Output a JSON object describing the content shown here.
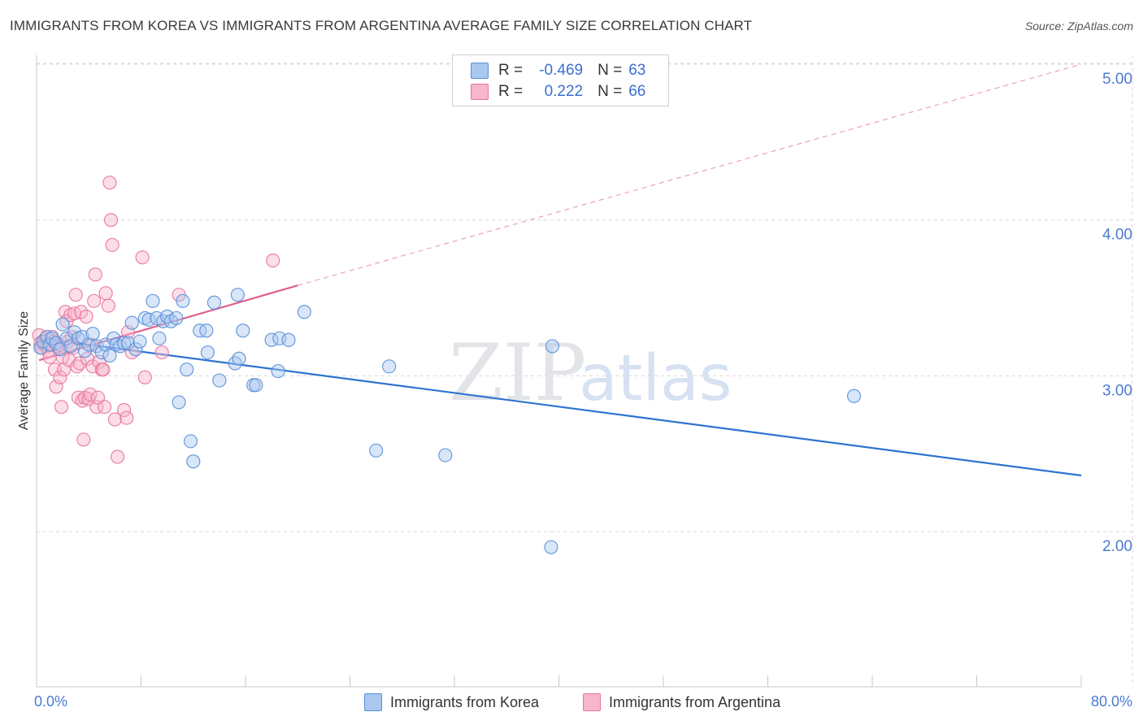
{
  "title": "IMMIGRANTS FROM KOREA VS IMMIGRANTS FROM ARGENTINA AVERAGE FAMILY SIZE CORRELATION CHART",
  "source": "Source: ZipAtlas.com",
  "watermark": {
    "zip": "ZIP",
    "atlas": "atlas"
  },
  "legend": {
    "korea": {
      "r_label": "R =",
      "r_value": "-0.469",
      "n_label": "N =",
      "n_value": "63"
    },
    "argentina": {
      "r_label": "R =",
      "r_value": "0.222",
      "n_label": "N =",
      "n_value": "66"
    }
  },
  "bottom_legend": {
    "korea": "Immigrants from Korea",
    "argentina": "Immigrants from Argentina"
  },
  "colors": {
    "korea_fill": "#a9c8f0",
    "korea_stroke": "#5b8fd8",
    "korea_line": "#2f74d0",
    "argentina_fill": "#f7b6cb",
    "argentina_stroke": "#e8769c",
    "argentina_line": "#e0608c",
    "tick": "#4a7bd0",
    "grid": "#d8d8d8"
  },
  "chart_data": {
    "type": "scatter",
    "xlabel": "",
    "ylabel": "Average Family Size",
    "xlim": [
      0,
      80
    ],
    "ylim": [
      1.0,
      5.1
    ],
    "x_tick_labels": [
      "0.0%",
      "80.0%"
    ],
    "y_ticks": [
      2.0,
      3.0,
      4.0,
      5.0
    ],
    "y_tick_labels": [
      "2.00",
      "3.00",
      "4.00",
      "5.00"
    ],
    "grid": true,
    "series": [
      {
        "name": "Immigrants from Korea",
        "points": [
          [
            0.3,
            3.18
          ],
          [
            0.5,
            3.22
          ],
          [
            0.8,
            3.25
          ],
          [
            1.0,
            3.2
          ],
          [
            1.2,
            3.24
          ],
          [
            1.5,
            3.21
          ],
          [
            1.8,
            3.17
          ],
          [
            2.0,
            3.33
          ],
          [
            2.3,
            3.24
          ],
          [
            2.6,
            3.19
          ],
          [
            2.9,
            3.28
          ],
          [
            3.2,
            3.24
          ],
          [
            3.5,
            3.25
          ],
          [
            3.7,
            3.16
          ],
          [
            4.0,
            3.2
          ],
          [
            4.3,
            3.27
          ],
          [
            4.6,
            3.19
          ],
          [
            5.0,
            3.15
          ],
          [
            5.3,
            3.2
          ],
          [
            5.6,
            3.13
          ],
          [
            5.9,
            3.24
          ],
          [
            6.1,
            3.2
          ],
          [
            6.4,
            3.19
          ],
          [
            6.7,
            3.21
          ],
          [
            7.0,
            3.21
          ],
          [
            7.3,
            3.34
          ],
          [
            7.6,
            3.17
          ],
          [
            7.9,
            3.22
          ],
          [
            8.3,
            3.37
          ],
          [
            8.6,
            3.36
          ],
          [
            8.9,
            3.48
          ],
          [
            9.2,
            3.37
          ],
          [
            9.4,
            3.24
          ],
          [
            9.7,
            3.35
          ],
          [
            10.0,
            3.38
          ],
          [
            10.3,
            3.35
          ],
          [
            10.7,
            3.37
          ],
          [
            10.9,
            2.83
          ],
          [
            11.2,
            3.48
          ],
          [
            11.5,
            3.04
          ],
          [
            11.8,
            2.58
          ],
          [
            12.0,
            2.45
          ],
          [
            12.5,
            3.29
          ],
          [
            13.0,
            3.29
          ],
          [
            13.1,
            3.15
          ],
          [
            13.6,
            3.47
          ],
          [
            14.0,
            2.97
          ],
          [
            15.2,
            3.08
          ],
          [
            15.4,
            3.52
          ],
          [
            15.5,
            3.11
          ],
          [
            15.8,
            3.29
          ],
          [
            16.6,
            2.94
          ],
          [
            16.8,
            2.94
          ],
          [
            18.0,
            3.23
          ],
          [
            18.5,
            3.03
          ],
          [
            18.6,
            3.24
          ],
          [
            19.3,
            3.23
          ],
          [
            20.5,
            3.41
          ],
          [
            26.0,
            2.52
          ],
          [
            27.0,
            3.06
          ],
          [
            31.3,
            2.49
          ],
          [
            39.4,
            1.9
          ],
          [
            39.5,
            3.19
          ],
          [
            62.6,
            2.87
          ]
        ],
        "trend": {
          "x": [
            0.3,
            80
          ],
          "y": [
            3.24,
            2.36
          ]
        }
      },
      {
        "name": "Immigrants from Argentina",
        "points": [
          [
            0.2,
            3.26
          ],
          [
            0.3,
            3.21
          ],
          [
            0.4,
            3.18
          ],
          [
            0.5,
            3.22
          ],
          [
            0.6,
            3.2
          ],
          [
            0.7,
            3.24
          ],
          [
            0.8,
            3.19
          ],
          [
            0.9,
            3.16
          ],
          [
            1.0,
            3.12
          ],
          [
            1.1,
            3.2
          ],
          [
            1.2,
            3.25
          ],
          [
            1.3,
            3.22
          ],
          [
            1.4,
            3.04
          ],
          [
            1.5,
            2.93
          ],
          [
            1.6,
            3.19
          ],
          [
            1.7,
            3.2
          ],
          [
            1.8,
            2.99
          ],
          [
            1.9,
            2.8
          ],
          [
            2.0,
            3.12
          ],
          [
            2.1,
            3.04
          ],
          [
            2.2,
            3.41
          ],
          [
            2.3,
            3.35
          ],
          [
            2.4,
            3.22
          ],
          [
            2.5,
            3.1
          ],
          [
            2.6,
            3.39
          ],
          [
            2.7,
            3.25
          ],
          [
            2.8,
            3.18
          ],
          [
            2.9,
            3.4
          ],
          [
            3.0,
            3.52
          ],
          [
            3.1,
            3.06
          ],
          [
            3.2,
            2.86
          ],
          [
            3.3,
            3.08
          ],
          [
            3.4,
            3.41
          ],
          [
            3.5,
            2.84
          ],
          [
            3.6,
            2.59
          ],
          [
            3.7,
            2.86
          ],
          [
            3.8,
            3.38
          ],
          [
            3.9,
            3.11
          ],
          [
            4.0,
            2.85
          ],
          [
            4.1,
            2.88
          ],
          [
            4.2,
            3.2
          ],
          [
            4.3,
            3.06
          ],
          [
            4.4,
            3.48
          ],
          [
            4.5,
            3.65
          ],
          [
            4.6,
            2.8
          ],
          [
            4.7,
            2.86
          ],
          [
            4.8,
            3.09
          ],
          [
            5.0,
            3.04
          ],
          [
            5.1,
            3.04
          ],
          [
            5.2,
            2.8
          ],
          [
            5.3,
            3.53
          ],
          [
            5.5,
            3.45
          ],
          [
            5.6,
            4.24
          ],
          [
            5.7,
            4.0
          ],
          [
            5.8,
            3.84
          ],
          [
            6.0,
            2.72
          ],
          [
            6.2,
            2.48
          ],
          [
            6.7,
            2.78
          ],
          [
            6.9,
            2.73
          ],
          [
            7.0,
            3.28
          ],
          [
            7.3,
            3.15
          ],
          [
            8.1,
            3.76
          ],
          [
            8.3,
            2.99
          ],
          [
            9.6,
            3.15
          ],
          [
            10.9,
            3.52
          ],
          [
            18.1,
            3.74
          ]
        ],
        "trend": {
          "x": [
            0.2,
            20.0
          ],
          "y": [
            3.1,
            3.58
          ]
        },
        "trend_extended": {
          "x": [
            20.0,
            80.0
          ],
          "y": [
            3.58,
            5.0
          ]
        }
      }
    ]
  }
}
